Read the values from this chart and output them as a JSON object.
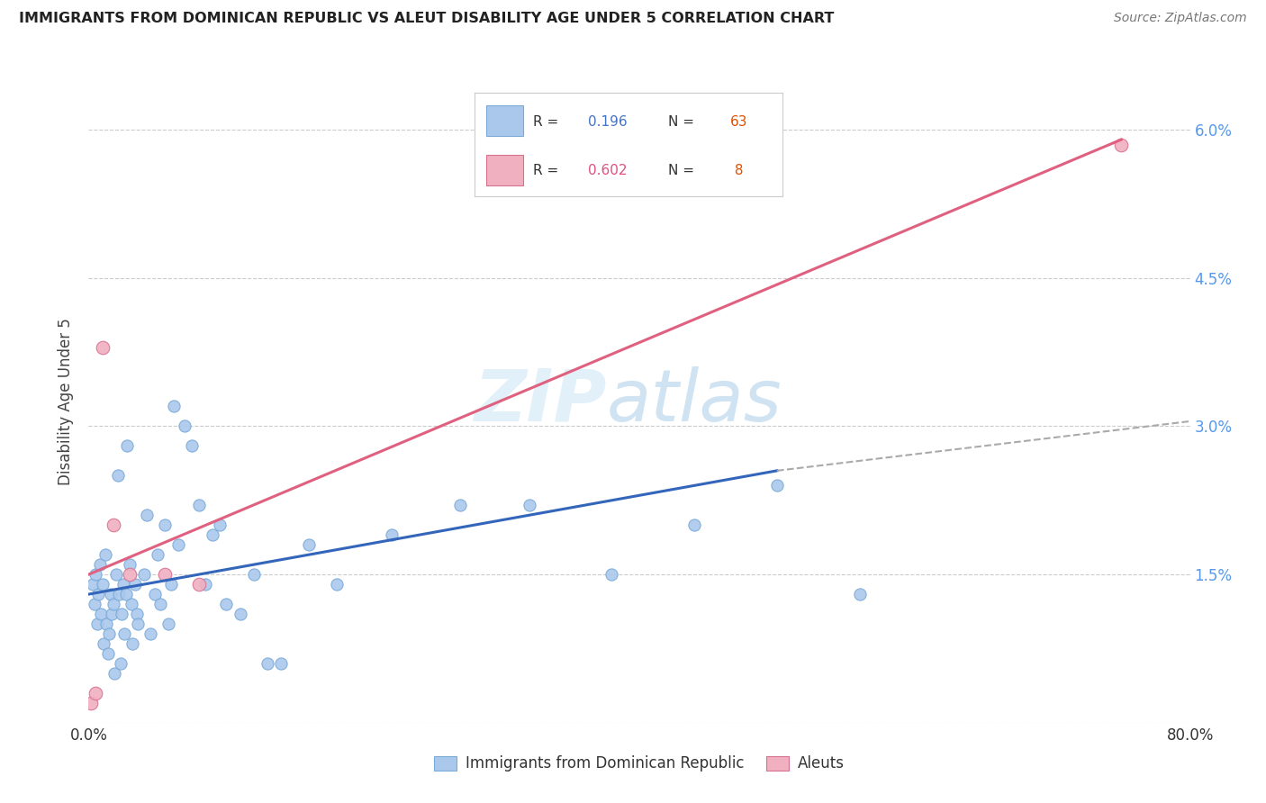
{
  "title": "IMMIGRANTS FROM DOMINICAN REPUBLIC VS ALEUT DISABILITY AGE UNDER 5 CORRELATION CHART",
  "source": "Source: ZipAtlas.com",
  "ylabel": "Disability Age Under 5",
  "xmin": 0.0,
  "xmax": 80.0,
  "ymin": 0.0,
  "ymax": 6.5,
  "yticks": [
    0.0,
    1.5,
    3.0,
    4.5,
    6.0
  ],
  "grid_color": "#cccccc",
  "background_color": "#ffffff",
  "watermark_zip": "ZIP",
  "watermark_atlas": "atlas",
  "watermark_color_zip": "#d8eaf8",
  "watermark_color_atlas": "#c8dff0",
  "series1_color": "#aac8ec",
  "series1_edge": "#7aaad8",
  "series2_color": "#f0b0c0",
  "series2_edge": "#d87090",
  "series1_label": "Immigrants from Dominican Republic",
  "series2_label": "Aleuts",
  "legend_r_color1": "#4472c4",
  "legend_r_color2": "#e05080",
  "legend_n_color": "#e05000",
  "trendline1_color": "#3366bb",
  "trendline2_color": "#e06080",
  "trendline_dashed_color": "#aaaaaa",
  "series1_x": [
    0.3,
    0.4,
    0.5,
    0.6,
    0.7,
    0.8,
    0.9,
    1.0,
    1.1,
    1.2,
    1.3,
    1.4,
    1.5,
    1.6,
    1.7,
    1.8,
    1.9,
    2.0,
    2.1,
    2.2,
    2.3,
    2.4,
    2.5,
    2.6,
    2.7,
    2.8,
    3.0,
    3.1,
    3.2,
    3.4,
    3.5,
    3.6,
    4.0,
    4.2,
    4.5,
    4.8,
    5.0,
    5.2,
    5.5,
    5.8,
    6.0,
    6.2,
    6.5,
    7.0,
    7.5,
    8.0,
    8.5,
    9.0,
    9.5,
    10.0,
    11.0,
    12.0,
    13.0,
    14.0,
    16.0,
    18.0,
    22.0,
    27.0,
    32.0,
    38.0,
    44.0,
    50.0,
    56.0
  ],
  "series1_y": [
    1.4,
    1.2,
    1.5,
    1.0,
    1.3,
    1.6,
    1.1,
    1.4,
    0.8,
    1.7,
    1.0,
    0.7,
    0.9,
    1.3,
    1.1,
    1.2,
    0.5,
    1.5,
    2.5,
    1.3,
    0.6,
    1.1,
    1.4,
    0.9,
    1.3,
    2.8,
    1.6,
    1.2,
    0.8,
    1.4,
    1.1,
    1.0,
    1.5,
    2.1,
    0.9,
    1.3,
    1.7,
    1.2,
    2.0,
    1.0,
    1.4,
    3.2,
    1.8,
    3.0,
    2.8,
    2.2,
    1.4,
    1.9,
    2.0,
    1.2,
    1.1,
    1.5,
    0.6,
    0.6,
    1.8,
    1.4,
    1.9,
    2.2,
    2.2,
    1.5,
    2.0,
    2.4,
    1.3
  ],
  "series2_x": [
    0.2,
    0.5,
    1.0,
    1.8,
    3.0,
    5.5,
    8.0,
    75.0
  ],
  "series2_y": [
    0.2,
    0.3,
    3.8,
    2.0,
    1.5,
    1.5,
    1.4,
    5.85
  ],
  "trendline1_x_start": 0.0,
  "trendline1_x_end": 50.0,
  "trendline1_y_start": 1.3,
  "trendline1_y_end": 2.55,
  "trendline2_x_start": 0.0,
  "trendline2_x_end": 75.0,
  "trendline2_y_start": 1.5,
  "trendline2_y_end": 5.9,
  "trendline_dashed_x_start": 50.0,
  "trendline_dashed_x_end": 80.0,
  "trendline_dashed_y_start": 2.55,
  "trendline_dashed_y_end": 3.05
}
